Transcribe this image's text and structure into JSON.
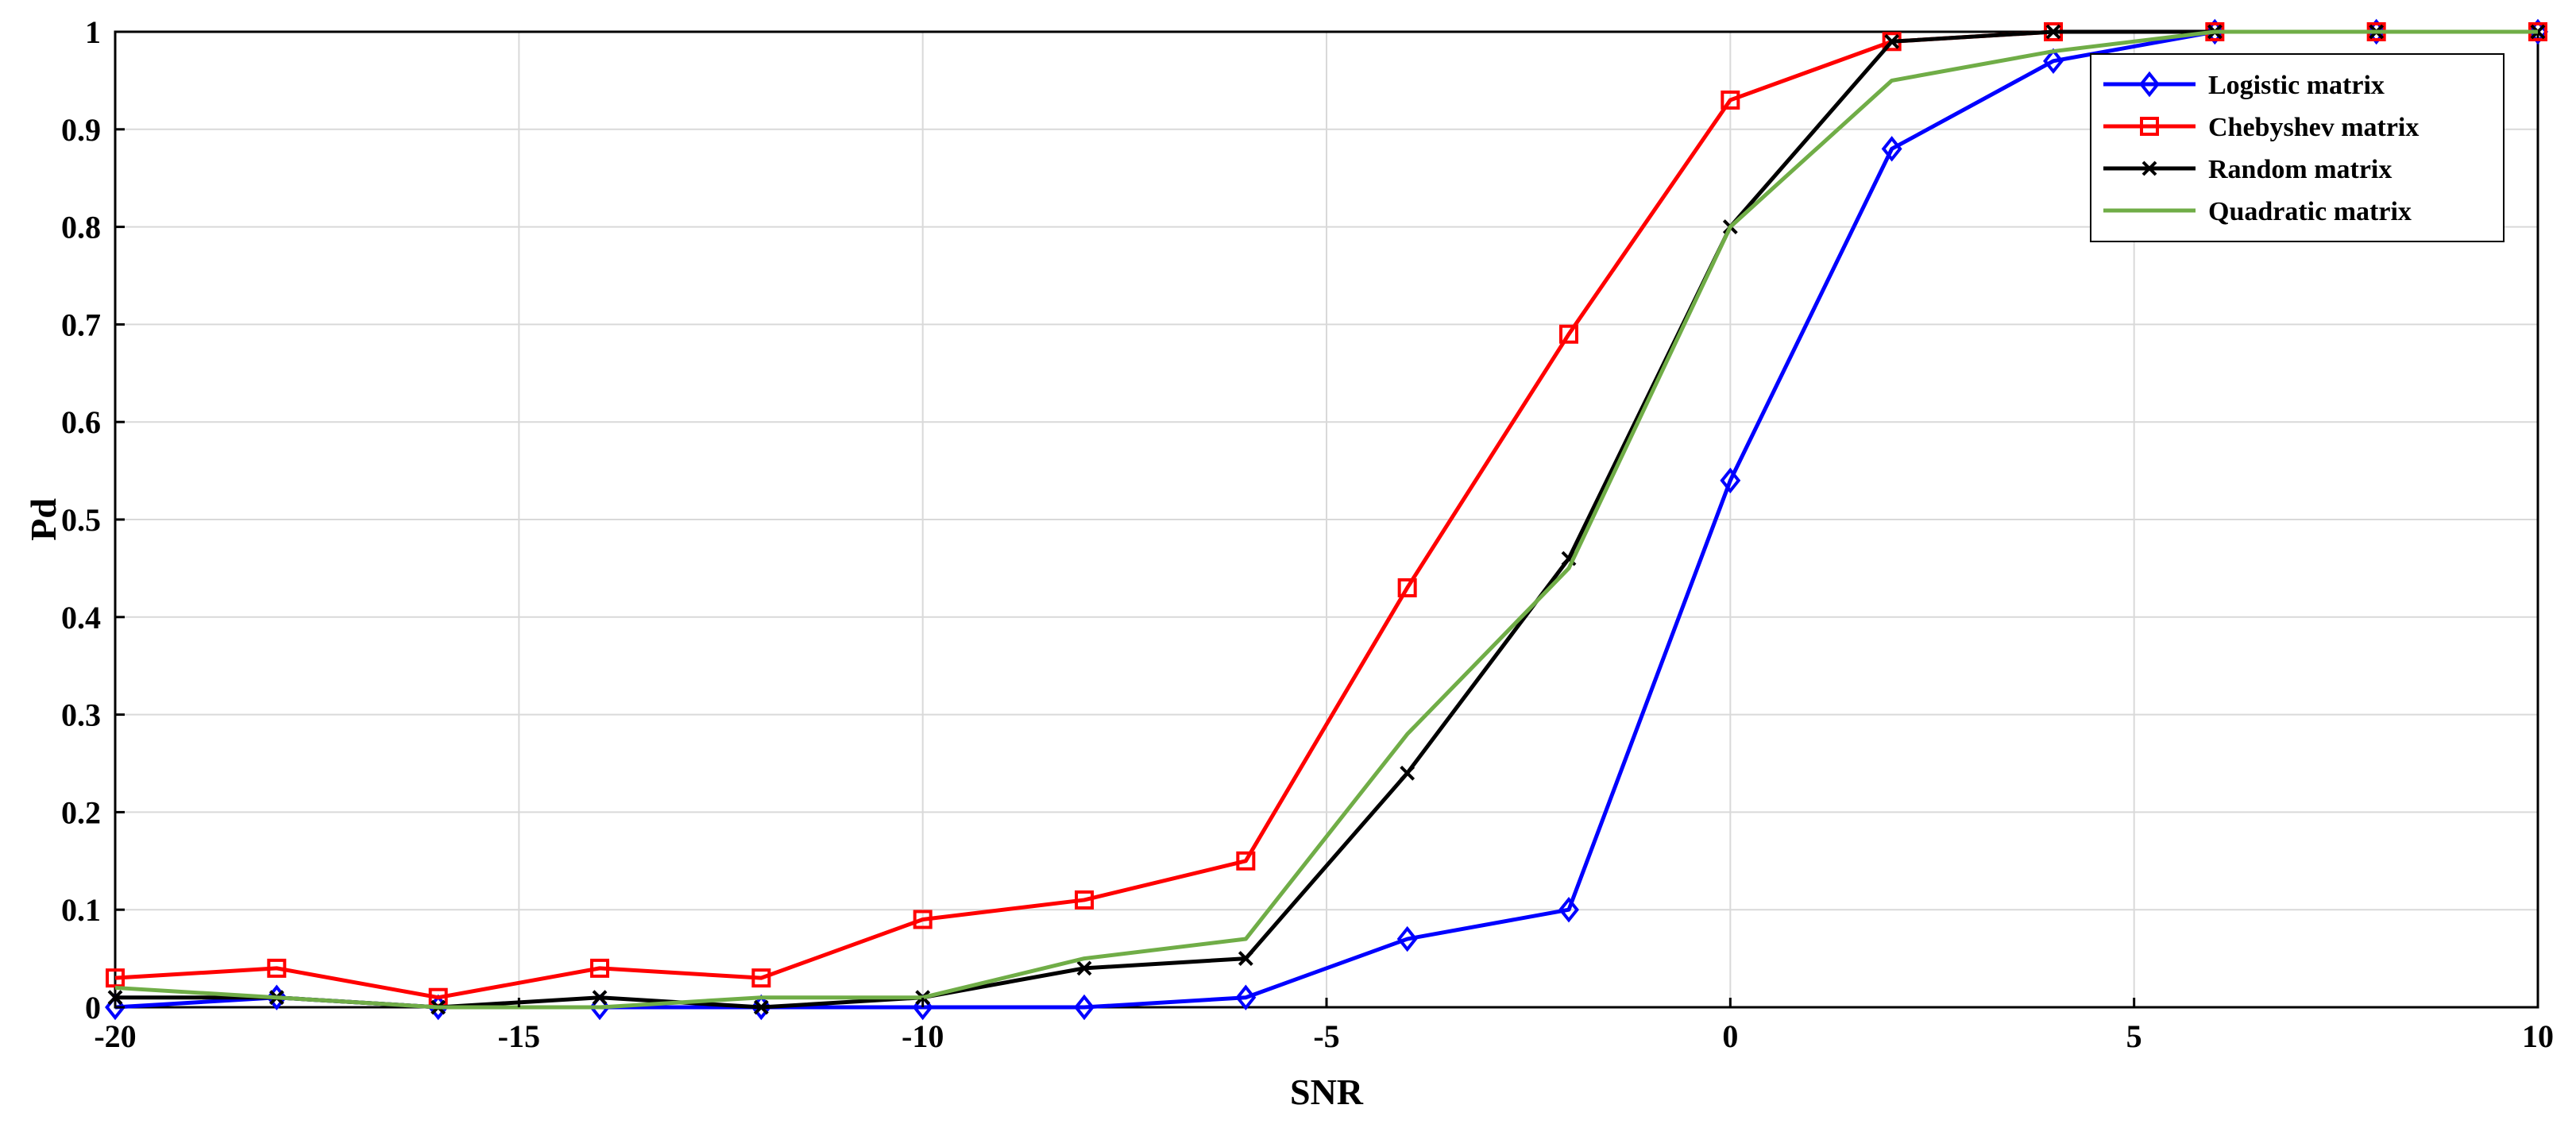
{
  "chart_data": {
    "type": "line",
    "title": "",
    "xlabel": "SNR",
    "ylabel": "Pd",
    "xlim": [
      -20,
      10
    ],
    "ylim": [
      0,
      1
    ],
    "xticks": [
      -20,
      -15,
      -10,
      -5,
      0,
      5,
      10
    ],
    "yticks": [
      0,
      0.1,
      0.2,
      0.3,
      0.4,
      0.5,
      0.6,
      0.7,
      0.8,
      0.9,
      1
    ],
    "xtick_labels": [
      "-20",
      "-15",
      "-10",
      "-5",
      "0",
      "5",
      "10"
    ],
    "ytick_labels": [
      "0",
      "0.1",
      "0.2",
      "0.3",
      "0.4",
      "0.5",
      "0.6",
      "0.7",
      "0.8",
      "0.9",
      "1"
    ],
    "grid": true,
    "legend_position": "top-right",
    "x": [
      -20,
      -18,
      -16,
      -14,
      -12,
      -10,
      -8,
      -6,
      -4,
      -2,
      0,
      2,
      4,
      6,
      8,
      10
    ],
    "series": [
      {
        "name": "Logistic matrix",
        "color": "#0000ff",
        "marker": "diamond",
        "values": [
          0,
          0.01,
          0,
          0,
          0,
          0,
          0,
          0.01,
          0.07,
          0.1,
          0.54,
          0.88,
          0.97,
          1,
          1,
          1
        ]
      },
      {
        "name": "Chebyshev matrix",
        "color": "#ff0000",
        "marker": "square",
        "values": [
          0.03,
          0.04,
          0.01,
          0.04,
          0.03,
          0.09,
          0.11,
          0.15,
          0.43,
          0.69,
          0.93,
          0.99,
          1,
          1,
          1,
          1
        ]
      },
      {
        "name": "Random matrix",
        "color": "#000000",
        "marker": "x",
        "values": [
          0.01,
          0.01,
          0,
          0.01,
          0,
          0.01,
          0.04,
          0.05,
          0.24,
          0.46,
          0.8,
          0.99,
          1,
          1,
          1,
          1
        ]
      },
      {
        "name": "Quadratic matrix",
        "color": "#70ad47",
        "marker": "none",
        "values": [
          0.02,
          0.01,
          0,
          0,
          0.01,
          0.01,
          0.05,
          0.07,
          0.28,
          0.45,
          0.8,
          0.95,
          0.98,
          1,
          1,
          1
        ]
      }
    ]
  }
}
